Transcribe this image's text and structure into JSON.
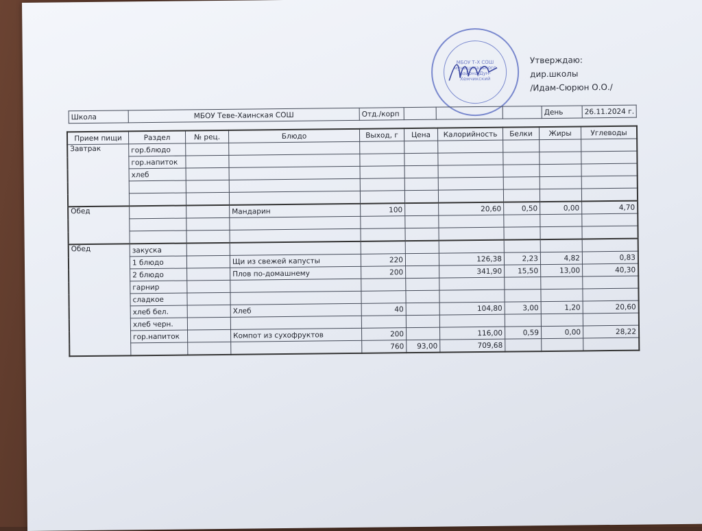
{
  "approval": {
    "line1": "Утверждаю:",
    "line2": "дир.школы",
    "line3": "/Идам-Сюрюн О.О./",
    "stamp_text": "МБОУ Т-Х СОШ муниципального района Дун-Хемчикский"
  },
  "header": {
    "school_label": "Школа",
    "school": "МБОУ Теве-Хаинская СОШ",
    "dept_label": "Отд./корп",
    "day_label": "День",
    "date": "26.11.2024 г."
  },
  "columns": [
    "Прием пищи",
    "Раздел",
    "№ рец.",
    "Блюдо",
    "Выход, г",
    "Цена",
    "Калорийность",
    "Белки",
    "Жиры",
    "Углеводы"
  ],
  "breakfast": {
    "meal": "Завтрак",
    "rows": [
      [
        "гор.блюдо",
        "",
        "",
        "",
        "",
        "",
        "",
        "",
        ""
      ],
      [
        "гор.напиток",
        "",
        "",
        "",
        "",
        "",
        "",
        "",
        ""
      ],
      [
        "хлеб",
        "",
        "",
        "",
        "",
        "",
        "",
        "",
        ""
      ],
      [
        "",
        "",
        "",
        "",
        "",
        "",
        "",
        "",
        ""
      ],
      [
        "",
        "",
        "",
        "",
        "",
        "",
        "",
        "",
        ""
      ]
    ]
  },
  "snack": {
    "meal": "Обед",
    "rows": [
      [
        "",
        "",
        "Мандарин",
        "100",
        "",
        "20,60",
        "0,50",
        "0,00",
        "4,70"
      ],
      [
        "",
        "",
        "",
        "",
        "",
        "",
        "",
        "",
        ""
      ],
      [
        "",
        "",
        "",
        "",
        "",
        "",
        "",
        "",
        ""
      ]
    ]
  },
  "lunch": {
    "meal": "Обед",
    "rows": [
      [
        "закуска",
        "",
        "",
        "",
        "",
        "",
        "",
        "",
        ""
      ],
      [
        "1 блюдо",
        "",
        "Щи из свежей капусты",
        "220",
        "",
        "126,38",
        "2,23",
        "4,82",
        "0,83"
      ],
      [
        "2 блюдо",
        "",
        "Плов по-домашнему",
        "200",
        "",
        "341,90",
        "15,50",
        "13,00",
        "40,30"
      ],
      [
        "гарнир",
        "",
        "",
        "",
        "",
        "",
        "",
        "",
        ""
      ],
      [
        "сладкое",
        "",
        "",
        "",
        "",
        "",
        "",
        "",
        ""
      ],
      [
        "хлеб бел.",
        "",
        "Хлеб",
        "40",
        "",
        "104,80",
        "3,00",
        "1,20",
        "20,60"
      ],
      [
        "хлеб черн.",
        "",
        "",
        "",
        "",
        "",
        "",
        "",
        ""
      ],
      [
        "гор.напиток",
        "",
        "Компот из сухофруктов",
        "200",
        "",
        "116,00",
        "0,59",
        "0,00",
        "28,22"
      ],
      [
        "",
        "",
        "",
        "760",
        "93,00",
        "709,68",
        "",
        "",
        ""
      ]
    ]
  }
}
